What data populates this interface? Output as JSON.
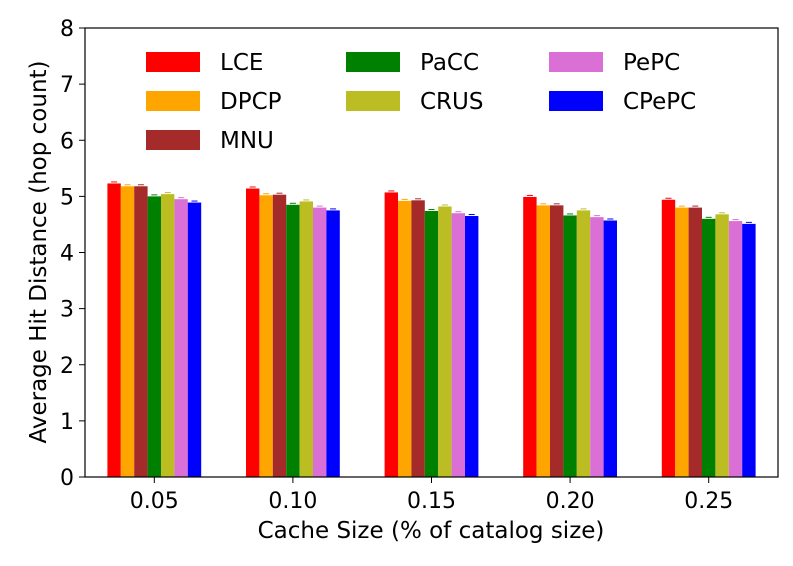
{
  "chart_data": {
    "type": "bar",
    "xlabel": "Cache Size (% of catalog size)",
    "ylabel": "Average Hit Distance (hop count)",
    "ylim": [
      0,
      8
    ],
    "yticks": [
      "0",
      "1",
      "2",
      "3",
      "4",
      "5",
      "6",
      "7",
      "8"
    ],
    "categories": [
      "0.05",
      "0.10",
      "0.15",
      "0.20",
      "0.25"
    ],
    "grid": false,
    "legend_position": "top",
    "series": [
      {
        "name": "LCE",
        "color": "#ff0000",
        "values": [
          5.23,
          5.14,
          5.07,
          4.99,
          4.94
        ]
      },
      {
        "name": "DPCP",
        "color": "#ffa500",
        "values": [
          5.18,
          5.02,
          4.92,
          4.84,
          4.8
        ]
      },
      {
        "name": "MNU",
        "color": "#a52a2a",
        "values": [
          5.18,
          5.03,
          4.93,
          4.84,
          4.8
        ]
      },
      {
        "name": "PaCC",
        "color": "#008000",
        "values": [
          5.0,
          4.85,
          4.74,
          4.66,
          4.6
        ]
      },
      {
        "name": "CRUS",
        "color": "#bcbd22",
        "values": [
          5.04,
          4.91,
          4.82,
          4.75,
          4.68
        ]
      },
      {
        "name": "PePC",
        "color": "#da70d6",
        "values": [
          4.95,
          4.8,
          4.7,
          4.63,
          4.56
        ]
      },
      {
        "name": "CPePC",
        "color": "#0000ff",
        "values": [
          4.89,
          4.75,
          4.65,
          4.57,
          4.51
        ]
      }
    ]
  }
}
